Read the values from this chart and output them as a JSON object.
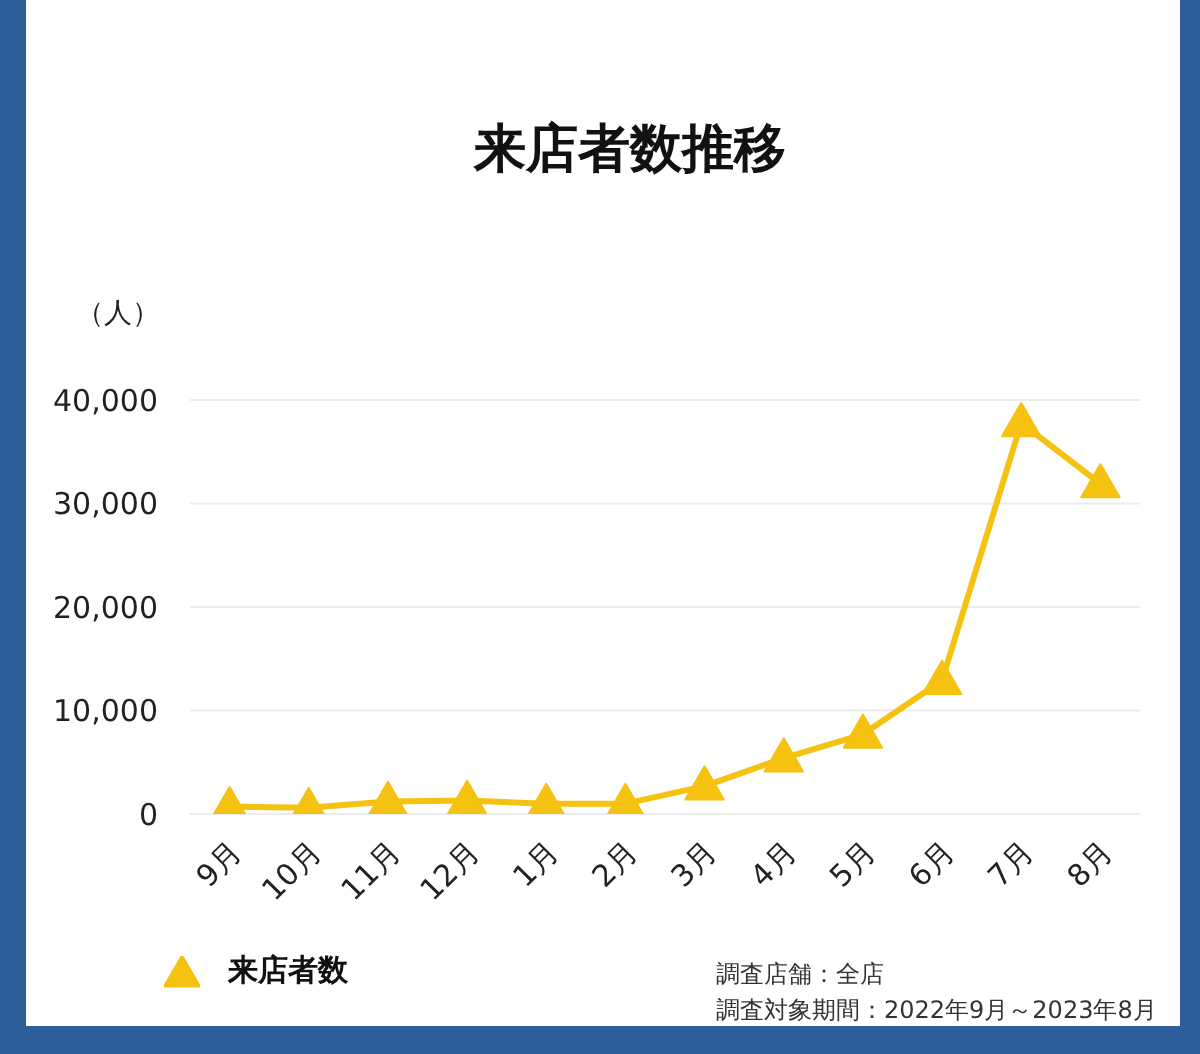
{
  "chart_data": {
    "type": "line",
    "title": "来店者数推移",
    "ylabel": "（人）",
    "categories": [
      "9月",
      "10月",
      "11月",
      "12月",
      "1月",
      "2月",
      "3月",
      "4月",
      "5月",
      "6月",
      "7月",
      "8月"
    ],
    "series": [
      {
        "name": "来店者数",
        "color": "#f5c211",
        "values": [
          700,
          600,
          1200,
          1300,
          1000,
          1000,
          2700,
          5400,
          7700,
          12900,
          37800,
          31900
        ]
      }
    ],
    "ylim": [
      0,
      40000
    ],
    "yticks": [
      {
        "value": 0,
        "label": "0"
      },
      {
        "value": 10000,
        "label": "10,000"
      },
      {
        "value": 20000,
        "label": "20,000"
      },
      {
        "value": 30000,
        "label": "30,000"
      },
      {
        "value": 40000,
        "label": "40,000"
      }
    ],
    "grid": "y",
    "legend": "bottom left",
    "marker": "triangle",
    "line_style": "solid",
    "annotations": [
      "調査店舗：全店",
      "調査対象期間：2022年9月～2023年8月"
    ]
  }
}
